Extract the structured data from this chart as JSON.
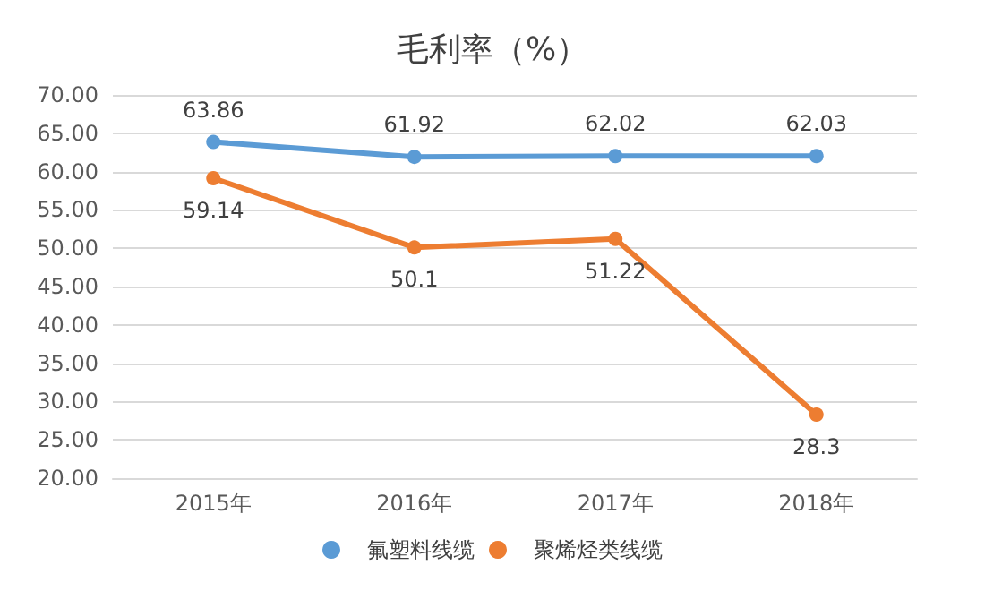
{
  "chart_data": {
    "type": "line",
    "title": "毛利率（%）",
    "categories": [
      "2015年",
      "2016年",
      "2017年",
      "2018年"
    ],
    "series": [
      {
        "name": "氟塑料线缆",
        "color": "#5b9bd5",
        "values": [
          63.86,
          61.92,
          62.02,
          62.03
        ]
      },
      {
        "name": "聚烯烃类线缆",
        "color": "#ed7d31",
        "values": [
          59.14,
          50.1,
          51.22,
          28.3
        ]
      }
    ],
    "ylim": [
      20,
      70
    ],
    "yticks": [
      {
        "value": 20,
        "label": "20.00"
      },
      {
        "value": 25,
        "label": "25.00"
      },
      {
        "value": 30,
        "label": "30.00"
      },
      {
        "value": 35,
        "label": "35.00"
      },
      {
        "value": 40,
        "label": "40.00"
      },
      {
        "value": 45,
        "label": "45.00"
      },
      {
        "value": 50,
        "label": "50.00"
      },
      {
        "value": 55,
        "label": "55.00"
      },
      {
        "value": 60,
        "label": "60.00"
      },
      {
        "value": 65,
        "label": "65.00"
      },
      {
        "value": 70,
        "label": "70.00"
      }
    ],
    "grid": "y",
    "legend": "bottom",
    "marker": "circle",
    "line_style": "solid",
    "data_labels": true
  }
}
